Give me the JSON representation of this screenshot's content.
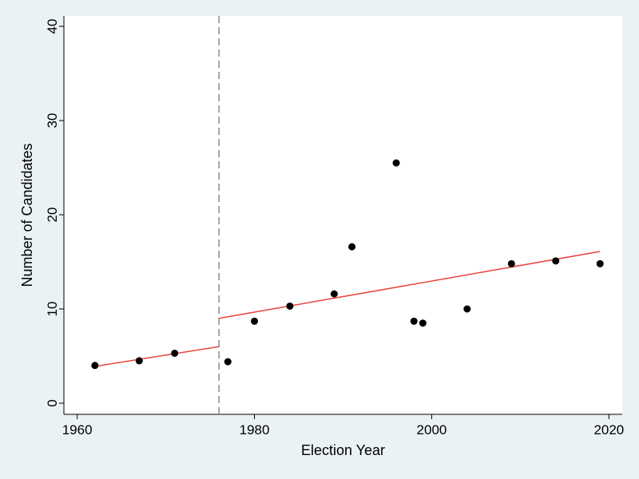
{
  "chart_data": {
    "type": "scatter",
    "title": "",
    "xlabel": "Election Year",
    "ylabel": "Number of Candidates",
    "xlim": [
      1958.5,
      2021.5
    ],
    "ylim": [
      0,
      40
    ],
    "xticks": [
      1960,
      1980,
      2000,
      2020
    ],
    "yticks": [
      0,
      10,
      20,
      30,
      40
    ],
    "grid": false,
    "legend": "none",
    "cutoff_year": 1976,
    "points": [
      {
        "x": 1962,
        "y": 4.0
      },
      {
        "x": 1967,
        "y": 4.5
      },
      {
        "x": 1971,
        "y": 5.3
      },
      {
        "x": 1977,
        "y": 4.4
      },
      {
        "x": 1980,
        "y": 8.7
      },
      {
        "x": 1984,
        "y": 10.3
      },
      {
        "x": 1989,
        "y": 11.6
      },
      {
        "x": 1991,
        "y": 16.6
      },
      {
        "x": 1996,
        "y": 25.5
      },
      {
        "x": 1998,
        "y": 8.7
      },
      {
        "x": 1999,
        "y": 8.5
      },
      {
        "x": 2004,
        "y": 10.0
      },
      {
        "x": 2009,
        "y": 14.8
      },
      {
        "x": 2014,
        "y": 15.1
      },
      {
        "x": 2019,
        "y": 14.8
      }
    ],
    "fit_lines": [
      {
        "x": [
          1962,
          1976
        ],
        "y": [
          3.9,
          6.0
        ]
      },
      {
        "x": [
          1976,
          2019
        ],
        "y": [
          9.0,
          16.1
        ]
      }
    ],
    "colors": {
      "background": "#eaf2f3",
      "plot_area": "#ffffff",
      "points": "#000000",
      "fit_line": "#e8433b",
      "cutoff_line": "#8a8a8a"
    }
  }
}
